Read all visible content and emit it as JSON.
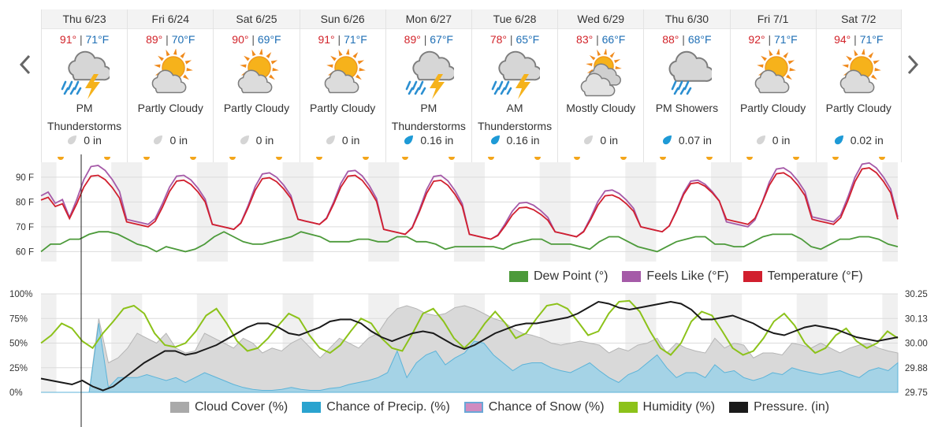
{
  "navigation": {
    "prev_icon": "chevron-left-icon",
    "next_icon": "chevron-right-icon"
  },
  "days": [
    {
      "label": "Thu 6/23",
      "hi": "91°",
      "lo": "71°F",
      "icon": "thunderstorm-icon",
      "cond1": "PM",
      "cond2": "Thunderstorms",
      "precip": "0 in",
      "drop": "gray"
    },
    {
      "label": "Fri 6/24",
      "hi": "89°",
      "lo": "70°F",
      "icon": "partly-cloudy-icon",
      "cond1": "Partly Cloudy",
      "cond2": "",
      "precip": "0 in",
      "drop": "gray"
    },
    {
      "label": "Sat 6/25",
      "hi": "90°",
      "lo": "69°F",
      "icon": "partly-cloudy-icon",
      "cond1": "Partly Cloudy",
      "cond2": "",
      "precip": "0 in",
      "drop": "gray"
    },
    {
      "label": "Sun 6/26",
      "hi": "91°",
      "lo": "71°F",
      "icon": "partly-cloudy-icon",
      "cond1": "Partly Cloudy",
      "cond2": "",
      "precip": "0 in",
      "drop": "gray"
    },
    {
      "label": "Mon 6/27",
      "hi": "89°",
      "lo": "67°F",
      "icon": "thunderstorm-icon",
      "cond1": "PM",
      "cond2": "Thunderstorms",
      "precip": "0.16 in",
      "drop": "blue"
    },
    {
      "label": "Tue 6/28",
      "hi": "78°",
      "lo": "65°F",
      "icon": "thunderstorm-icon",
      "cond1": "AM",
      "cond2": "Thunderstorms",
      "precip": "0.16 in",
      "drop": "blue"
    },
    {
      "label": "Wed 6/29",
      "hi": "83°",
      "lo": "66°F",
      "icon": "mostly-cloudy-icon",
      "cond1": "Mostly Cloudy",
      "cond2": "",
      "precip": "0 in",
      "drop": "gray"
    },
    {
      "label": "Thu 6/30",
      "hi": "88°",
      "lo": "68°F",
      "icon": "showers-icon",
      "cond1": "PM Showers",
      "cond2": "",
      "precip": "0.07 in",
      "drop": "blue"
    },
    {
      "label": "Fri 7/1",
      "hi": "92°",
      "lo": "71°F",
      "icon": "partly-cloudy-icon",
      "cond1": "Partly Cloudy",
      "cond2": "",
      "precip": "0 in",
      "drop": "gray"
    },
    {
      "label": "Sat 7/2",
      "hi": "94°",
      "lo": "71°F",
      "icon": "partly-cloudy-icon",
      "cond1": "Partly Cloudy",
      "cond2": "",
      "precip": "0.02 in",
      "drop": "blue"
    }
  ],
  "colors": {
    "dew_point": "#4c9a3a",
    "feels_like": "#a55aa8",
    "temperature": "#d11f2e",
    "cloud_cover": "#a9a9a9",
    "chance_precip": "#2aa3cf",
    "chance_snow": "#d08bc0",
    "humidity": "#8cc21a",
    "pressure": "#1a1a1a",
    "sun": "#f3a51a",
    "blue_drop": "#1e9ad6",
    "gray_drop": "#d5d5d5"
  },
  "chart_data": [
    {
      "type": "line",
      "x_unit": "day",
      "ytick_labels": [
        "90 F",
        "80 F",
        "70 F",
        "60 F"
      ],
      "yticks": [
        90,
        80,
        70,
        60
      ],
      "ylim": [
        56,
        96
      ],
      "legend": [
        "Dew Point (°)",
        "Feels Like (°F)",
        "Temperature (°F)"
      ],
      "series": [
        {
          "name": "Temperature (°F)",
          "key": "temperature",
          "highs": [
            91,
            89,
            90,
            91,
            89,
            78,
            83,
            88,
            92,
            94
          ],
          "lows": [
            71,
            70,
            69,
            71,
            67,
            65,
            66,
            68,
            71,
            71
          ],
          "start_value": 84
        },
        {
          "name": "Feels Like (°F)",
          "key": "feels_like",
          "highs": [
            95,
            91,
            92,
            93,
            91,
            80,
            85,
            89,
            94,
            96
          ],
          "lows": [
            71,
            71,
            69,
            71,
            67,
            65,
            66,
            68,
            70,
            72
          ],
          "start_value": 86
        },
        {
          "name": "Dew Point (°)",
          "key": "dew_point",
          "values": [
            60,
            63,
            63,
            65,
            65,
            67,
            68,
            68,
            67,
            65,
            63,
            62,
            60,
            62,
            61,
            60,
            61,
            63,
            66,
            68,
            66,
            64,
            63,
            63,
            64,
            65,
            66,
            68,
            67,
            66,
            64,
            64,
            64,
            65,
            65,
            64,
            64,
            66,
            66,
            64,
            64,
            63,
            61,
            62,
            62,
            62,
            62,
            62,
            61,
            63,
            64,
            65,
            65,
            63,
            63,
            63,
            62,
            61,
            64,
            66,
            66,
            64,
            62,
            61,
            60,
            62,
            64,
            65,
            66,
            66,
            63,
            63,
            62,
            62,
            64,
            66,
            67,
            67,
            67,
            65,
            62,
            61,
            63,
            65,
            65,
            66,
            66,
            65,
            63,
            62
          ]
        }
      ]
    },
    {
      "type": "area",
      "x_unit": "day",
      "ytick_labels_left": [
        "100%",
        "75%",
        "50%",
        "25%",
        "0%"
      ],
      "ytick_labels_right": [
        "30.25",
        "30.13",
        "30.00",
        "29.88",
        "29.75"
      ],
      "yticks_left": [
        100,
        75,
        50,
        25,
        0
      ],
      "yticks_right": [
        30.25,
        30.13,
        30.0,
        29.88,
        29.75
      ],
      "ylim_left": [
        0,
        100
      ],
      "ylim_right": [
        29.75,
        30.25
      ],
      "legend": [
        "Cloud Cover (%)",
        "Chance of Precip. (%)",
        "Chance of Snow (%)",
        "Humidity (%)",
        "Pressure. (in)"
      ],
      "series": [
        {
          "name": "Cloud Cover (%)",
          "key": "cloud_cover",
          "values": [
            0,
            0,
            0,
            0,
            0,
            0,
            75,
            30,
            35,
            45,
            60,
            55,
            50,
            60,
            45,
            40,
            42,
            60,
            55,
            50,
            45,
            55,
            50,
            40,
            45,
            42,
            50,
            55,
            45,
            35,
            45,
            55,
            50,
            45,
            55,
            60,
            75,
            85,
            88,
            85,
            80,
            78,
            80,
            86,
            88,
            85,
            80,
            75,
            72,
            65,
            60,
            58,
            55,
            50,
            48,
            50,
            52,
            50,
            48,
            40,
            45,
            42,
            48,
            50,
            55,
            40,
            50,
            45,
            42,
            40,
            55,
            45,
            50,
            48,
            35,
            40,
            40,
            38,
            50,
            48,
            45,
            50,
            45,
            40,
            45,
            48,
            50,
            45,
            42,
            40
          ]
        },
        {
          "name": "Chance of Precip. (%)",
          "key": "chance_precip",
          "values": [
            0,
            0,
            0,
            0,
            0,
            0,
            70,
            5,
            15,
            15,
            15,
            18,
            15,
            12,
            15,
            10,
            15,
            20,
            16,
            12,
            8,
            5,
            3,
            2,
            2,
            3,
            5,
            3,
            2,
            2,
            4,
            5,
            8,
            10,
            12,
            15,
            20,
            42,
            15,
            30,
            38,
            42,
            28,
            35,
            40,
            52,
            50,
            38,
            30,
            22,
            28,
            30,
            30,
            25,
            22,
            20,
            25,
            30,
            22,
            15,
            10,
            18,
            22,
            30,
            38,
            25,
            15,
            20,
            20,
            15,
            28,
            20,
            22,
            15,
            12,
            15,
            20,
            18,
            25,
            22,
            20,
            18,
            20,
            22,
            18,
            15,
            22,
            25,
            22,
            30
          ]
        },
        {
          "name": "Chance of Snow (%)",
          "key": "chance_snow",
          "values": [
            0,
            0,
            0,
            0,
            0,
            0,
            0,
            0,
            0,
            0,
            0,
            0,
            0,
            0,
            0,
            0,
            0,
            0,
            0,
            0,
            0,
            0,
            0,
            0,
            0,
            0,
            0,
            0,
            0,
            0,
            0,
            0,
            0,
            0,
            0,
            0,
            0,
            0,
            0,
            0,
            0,
            0,
            0,
            0,
            0,
            0,
            0,
            0,
            0,
            0,
            0,
            0,
            0,
            0,
            0,
            0,
            0,
            0,
            0,
            0,
            0,
            0,
            0,
            0,
            0,
            0,
            0,
            0,
            0,
            0,
            0,
            0,
            0,
            0,
            0,
            0,
            0,
            0,
            0,
            0,
            0,
            0,
            0,
            0,
            0,
            0,
            0,
            0,
            0,
            0
          ]
        },
        {
          "name": "Humidity (%)",
          "key": "humidity",
          "values": [
            50,
            58,
            70,
            65,
            52,
            45,
            60,
            72,
            85,
            88,
            80,
            60,
            48,
            46,
            50,
            62,
            78,
            85,
            70,
            52,
            42,
            45,
            55,
            68,
            80,
            75,
            58,
            45,
            40,
            48,
            62,
            75,
            70,
            55,
            45,
            42,
            60,
            80,
            85,
            72,
            55,
            45,
            55,
            70,
            82,
            70,
            55,
            60,
            75,
            88,
            90,
            85,
            72,
            58,
            62,
            80,
            92,
            93,
            82,
            62,
            45,
            38,
            50,
            72,
            82,
            78,
            62,
            45,
            38,
            42,
            55,
            72,
            80,
            68,
            50,
            40,
            45,
            58,
            65,
            52,
            45,
            50,
            62,
            55
          ]
        },
        {
          "name": "Pressure. (in)",
          "key": "pressure",
          "values": [
            29.82,
            29.81,
            29.8,
            29.79,
            29.81,
            29.78,
            29.76,
            29.78,
            29.82,
            29.86,
            29.9,
            29.93,
            29.96,
            29.96,
            29.94,
            29.95,
            29.97,
            29.99,
            30.02,
            30.05,
            30.08,
            30.1,
            30.1,
            30.08,
            30.05,
            30.04,
            30.06,
            30.08,
            30.11,
            30.12,
            30.12,
            30.1,
            30.06,
            30.03,
            30.01,
            30.03,
            30.05,
            30.06,
            30.05,
            30.02,
            29.99,
            29.97,
            29.99,
            30.02,
            30.05,
            30.07,
            30.09,
            30.1,
            30.1,
            30.11,
            30.12,
            30.13,
            30.15,
            30.18,
            30.21,
            30.2,
            30.18,
            30.17,
            30.18,
            30.19,
            30.2,
            30.21,
            30.2,
            30.17,
            30.12,
            30.12,
            30.13,
            30.14,
            30.12,
            30.1,
            30.07,
            30.05,
            30.04,
            30.06,
            30.08,
            30.09,
            30.08,
            30.07,
            30.05,
            30.03,
            30.02,
            30.01,
            30.02,
            30.03
          ]
        }
      ]
    }
  ]
}
